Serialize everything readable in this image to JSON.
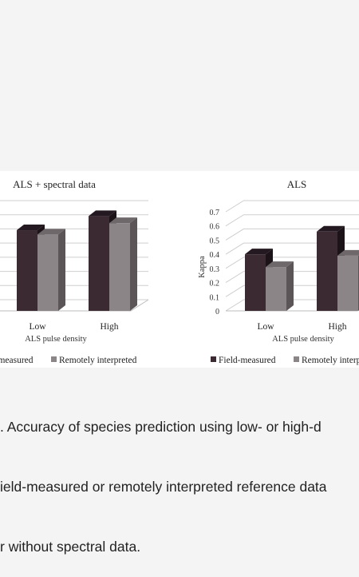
{
  "chart_data": [
    {
      "type": "bar",
      "title": "ALS + spectral data",
      "xlabel": "ALS pulse density",
      "ylabel": "",
      "categories": [
        "Low",
        "High"
      ],
      "series": [
        {
          "name": "Field-measured",
          "values": [
            0.57,
            0.67
          ]
        },
        {
          "name": "Remotely interpreted",
          "values": [
            0.54,
            0.62
          ]
        }
      ],
      "ylim": [
        0,
        0.7
      ],
      "grid": true,
      "legend": "bottom"
    },
    {
      "type": "bar",
      "title": "ALS",
      "xlabel": "ALS pulse density",
      "ylabel": "Kappa",
      "categories": [
        "Low",
        "High"
      ],
      "series": [
        {
          "name": "Field-measured",
          "values": [
            0.4,
            0.56
          ]
        },
        {
          "name": "Remotely interpreted",
          "values": [
            0.31,
            0.39
          ]
        }
      ],
      "yticks": [
        "0",
        "0.1",
        "0.2",
        "0.3",
        "0.4",
        "0.5",
        "0.6",
        "0.7"
      ],
      "ylim": [
        0,
        0.7
      ],
      "grid": true,
      "legend": "bottom"
    }
  ],
  "colors": {
    "field_front": "#3b2a32",
    "field_top": "#241920",
    "field_side": "#1c1318",
    "remote_front": "#8c8588",
    "remote_top": "#6e686b",
    "remote_side": "#5b5558"
  },
  "caption": {
    "line1": ". Accuracy of species prediction using low- or high-d",
    "line2": "ield-measured or remotely interpreted reference data",
    "line3": "r without spectral data."
  }
}
